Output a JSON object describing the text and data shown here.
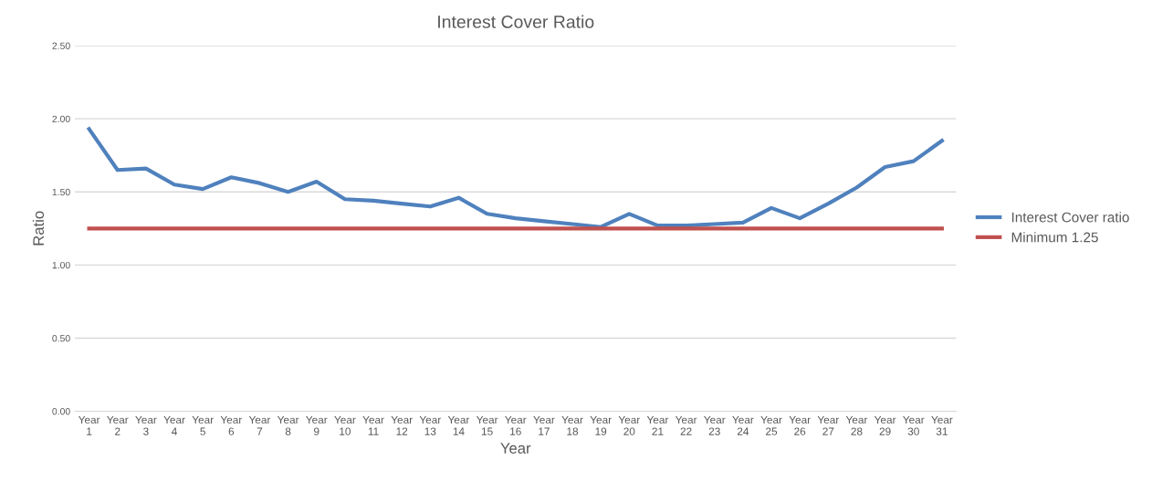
{
  "chart_data": {
    "type": "line",
    "title": "Interest Cover Ratio",
    "xlabel": "Year",
    "ylabel": "Ratio",
    "categories": [
      "Year\n1",
      "Year\n2",
      "Year\n3",
      "Year\n4",
      "Year\n5",
      "Year\n6",
      "Year\n7",
      "Year\n8",
      "Year\n9",
      "Year\n10",
      "Year\n11",
      "Year\n12",
      "Year\n13",
      "Year\n14",
      "Year\n15",
      "Year\n16",
      "Year\n17",
      "Year\n18",
      "Year\n19",
      "Year\n20",
      "Year\n21",
      "Year\n22",
      "Year\n23",
      "Year\n24",
      "Year\n25",
      "Year\n26",
      "Year\n27",
      "Year\n28",
      "Year\n29",
      "Year\n30",
      "Year\n31"
    ],
    "series": [
      {
        "name": "Interest Cover ratio",
        "color": "#4f81bd",
        "values": [
          1.93,
          1.65,
          1.66,
          1.55,
          1.52,
          1.6,
          1.56,
          1.5,
          1.57,
          1.45,
          1.44,
          1.42,
          1.4,
          1.46,
          1.35,
          1.32,
          1.3,
          1.28,
          1.26,
          1.35,
          1.27,
          1.27,
          1.28,
          1.29,
          1.39,
          1.32,
          1.42,
          1.53,
          1.67,
          1.71,
          1.85
        ]
      },
      {
        "name": "Minimum 1.25",
        "color": "#c0504d",
        "values": [
          1.25,
          1.25,
          1.25,
          1.25,
          1.25,
          1.25,
          1.25,
          1.25,
          1.25,
          1.25,
          1.25,
          1.25,
          1.25,
          1.25,
          1.25,
          1.25,
          1.25,
          1.25,
          1.25,
          1.25,
          1.25,
          1.25,
          1.25,
          1.25,
          1.25,
          1.25,
          1.25,
          1.25,
          1.25,
          1.25,
          1.25
        ]
      }
    ],
    "ylim": [
      0,
      2.5
    ],
    "yticks": [
      {
        "value": 0,
        "label": "0.00"
      },
      {
        "value": 0.5,
        "label": "0.50"
      },
      {
        "value": 1,
        "label": "1.00"
      },
      {
        "value": 1.5,
        "label": "1.50"
      },
      {
        "value": 2,
        "label": "2.00"
      },
      {
        "value": 2.5,
        "label": "2.50"
      }
    ],
    "grid": "y",
    "legend": "right",
    "marker": "none",
    "line_style": "solid"
  }
}
